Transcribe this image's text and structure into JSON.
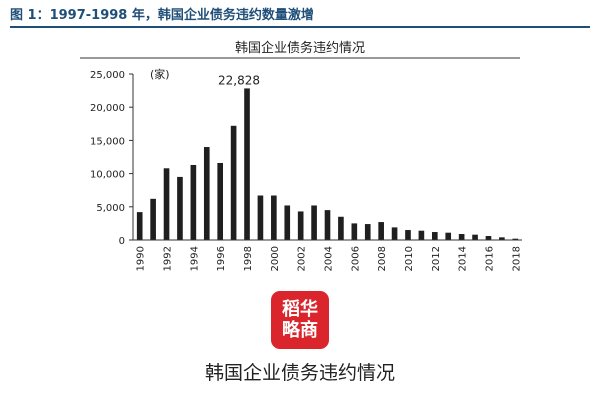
{
  "header": {
    "title": "图 1：1997-1998 年，韩国企业债务违约数量激增"
  },
  "logo": {
    "line1": "稻华",
    "line2": "略商"
  },
  "caption": "韩国企业债务违约情况",
  "colors": {
    "bar": "#1f1f1f",
    "header": "#1f4e79",
    "logo": "#d9252b"
  },
  "chart_data": {
    "type": "bar",
    "title": "韩国企业债务违约情况",
    "unit_label": "(家)",
    "categories": [
      "1990",
      "1991",
      "1992",
      "1993",
      "1994",
      "1995",
      "1996",
      "1997",
      "1998",
      "1999",
      "2000",
      "2001",
      "2002",
      "2003",
      "2004",
      "2005",
      "2006",
      "2007",
      "2008",
      "2009",
      "2010",
      "2011",
      "2012",
      "2013",
      "2014",
      "2015",
      "2016",
      "2017",
      "2018"
    ],
    "values": [
      4200,
      6200,
      10800,
      9500,
      11300,
      14000,
      11600,
      17200,
      22828,
      6700,
      6700,
      5200,
      4300,
      5200,
      4500,
      3500,
      2500,
      2400,
      2700,
      1900,
      1500,
      1400,
      1200,
      1100,
      900,
      800,
      600,
      400,
      200
    ],
    "x_tick_labels": [
      "1990",
      "1992",
      "1994",
      "1996",
      "1998",
      "2000",
      "2002",
      "2004",
      "2006",
      "2008",
      "2010",
      "2012",
      "2014",
      "2016",
      "2018"
    ],
    "y_tick_labels": [
      "0",
      "5,000",
      "10,000",
      "15,000",
      "20,000",
      "25,000"
    ],
    "ylim": [
      0,
      25000
    ],
    "annotations": [
      {
        "category": "1998",
        "text": "22,828"
      }
    ],
    "grid": false,
    "legend": "none"
  }
}
